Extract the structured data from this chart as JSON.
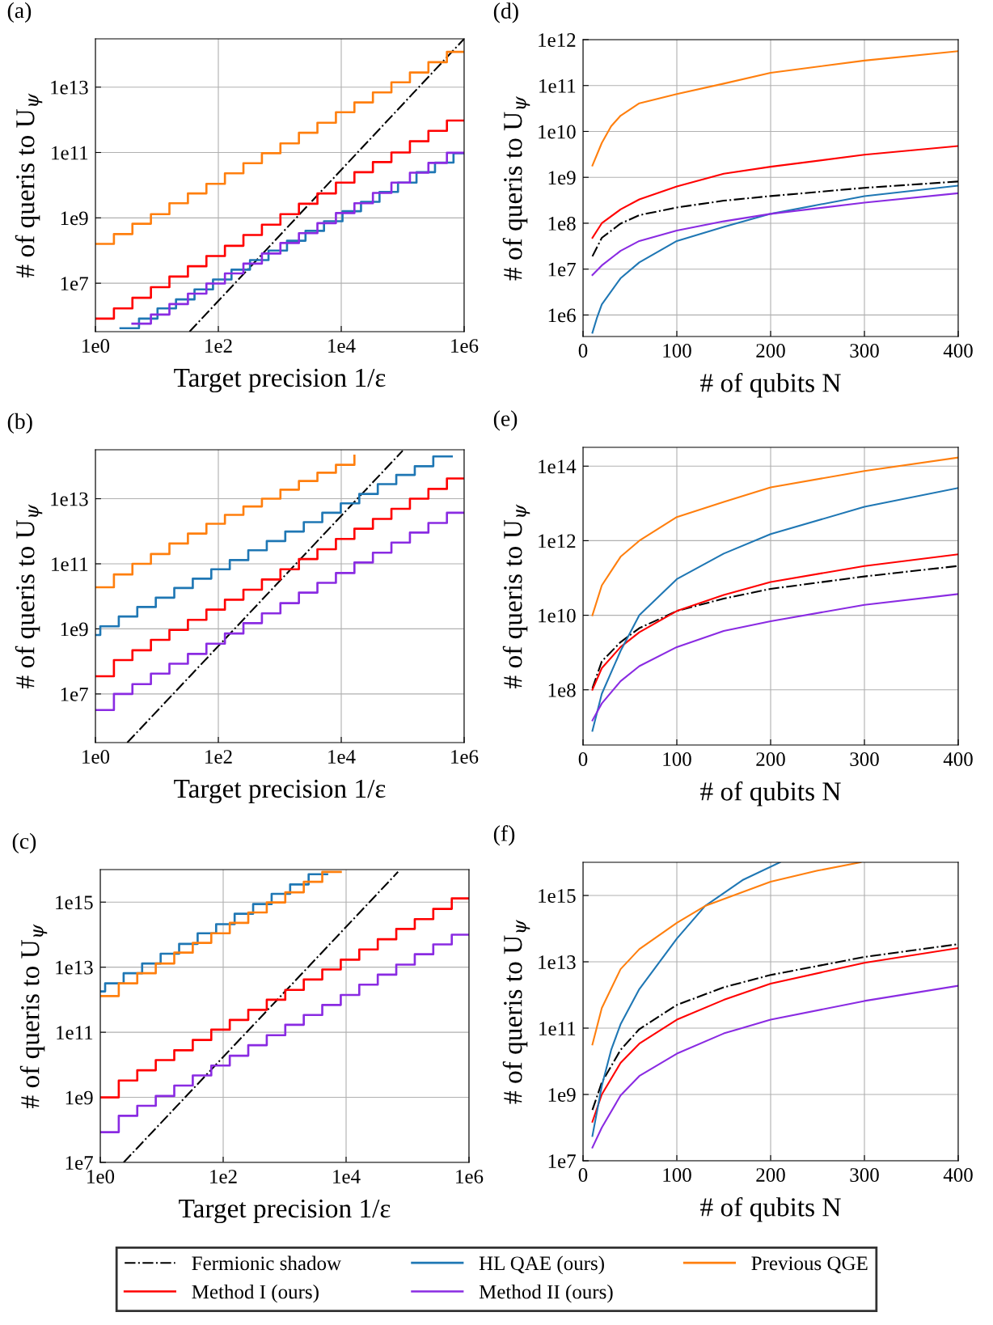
{
  "chart_data": [
    {
      "type": "step",
      "title": "(a)",
      "xlabel": "Target precision 1/ε",
      "ylabel": "# of queris to U$_{ψ}$",
      "log": "xy",
      "grid": true,
      "legend": "bottom",
      "xlim": [
        1,
        1000000
      ],
      "ylim": [
        330000,
        300000000000000.0
      ],
      "xticks": [
        {
          "value": 1,
          "label": "1e0"
        },
        {
          "value": 100,
          "label": "1e2"
        },
        {
          "value": 10000,
          "label": "1e4"
        },
        {
          "value": 1000000,
          "label": "1e6"
        }
      ],
      "yticks": [
        {
          "value": 10000000.0,
          "label": "1e7"
        },
        {
          "value": 1000000000.0,
          "label": "1e9"
        },
        {
          "value": 100000000000.0,
          "label": "1e11"
        },
        {
          "value": 10000000000000.0,
          "label": "1e13"
        }
      ],
      "x": [
        1,
        2,
        4,
        8,
        16,
        32,
        64,
        128,
        256,
        512,
        1024,
        2048,
        4096,
        8192,
        16384,
        32768,
        65536,
        131072,
        262144,
        524288,
        1000000
      ],
      "series": [
        {
          "name": "Fermionic shadow",
          "type": "line",
          "line_style": "dashdot",
          "color": "#000000",
          "x": [
            34,
            1000000
          ],
          "values": [
            330000.0,
            300000000000000.0
          ]
        },
        {
          "name": "Method I (ours)",
          "color": "#ff0000",
          "values": [
            830000.0,
            1700000.0,
            3600000.0,
            7600000.0,
            16000000.0,
            33000000.0,
            68000000.0,
            140000000.0,
            300000000.0,
            620000000.0,
            1300000000.0,
            2700000000.0,
            5600000000.0,
            12000000000.0,
            25000000000.0,
            51000000000.0,
            100000000000.0,
            220000000000.0,
            460000000000.0,
            950000000000.0,
            950000000000.0
          ]
        },
        {
          "name": "HL QAE (ours)",
          "color": "#1f77b4",
          "x": [
            2.56,
            5.12,
            10.24,
            20.48,
            40.96,
            81.92,
            163.8,
            327.7,
            655.4,
            1311,
            2621,
            5243,
            10486,
            20972,
            41943,
            83886,
            167772,
            335544,
            671089,
            1000000
          ],
          "values": [
            420000.0,
            830000.0,
            1700000.0,
            3200000.0,
            6500000.0,
            13000000.0,
            26000000.0,
            51000000.0,
            100000000.0,
            200000000.0,
            400000000.0,
            790000000.0,
            1600000000.0,
            3100000000.0,
            6200000000.0,
            12000000000.0,
            25000000000.0,
            49000000000.0,
            95000000000.0,
            95000000000.0
          ]
        },
        {
          "name": "Method II (ours)",
          "color": "#8a2be2",
          "x": [
            4,
            8,
            16,
            32,
            64,
            128,
            256,
            512,
            1024,
            2048,
            4096,
            8192,
            16384,
            32768,
            65536,
            131072,
            262144,
            524288,
            1000000
          ],
          "values": [
            580000.0,
            1100000.0,
            2300000.0,
            4800000.0,
            9800000.0,
            20000000.0,
            40000000.0,
            81000000.0,
            170000000.0,
            340000000.0,
            690000000.0,
            1400000000.0,
            2800000000.0,
            5800000000.0,
            12000000000.0,
            24000000000.0,
            48000000000.0,
            98000000000.0,
            98000000000.0
          ]
        },
        {
          "name": "Previous QGE",
          "color": "#ff7f0e",
          "values": [
            160000000.0,
            320000000.0,
            660000000.0,
            1300000000.0,
            2800000000.0,
            5600000000.0,
            11000000000.0,
            23000000000.0,
            47000000000.0,
            95000000000.0,
            190000000000.0,
            400000000000.0,
            810000000000.0,
            1700000000000.0,
            3400000000000.0,
            6900000000000.0,
            14000000000000.0,
            28000000000000.0,
            58000000000000.0,
            120000000000000.0,
            120000000000000.0
          ]
        }
      ]
    },
    {
      "type": "line",
      "title": "(d)",
      "xlabel": "# of qubits N",
      "ylabel": "# of queris to U$_{ψ}$",
      "log": "y",
      "grid": true,
      "xlim": [
        0,
        400
      ],
      "ylim": [
        340000,
        1000000000000.0
      ],
      "xticks": [
        0,
        100,
        200,
        300,
        400
      ],
      "yticks": [
        {
          "value": 1000000.0,
          "label": "1e6"
        },
        {
          "value": 10000000.0,
          "label": "1e7"
        },
        {
          "value": 100000000.0,
          "label": "1e8"
        },
        {
          "value": 1000000000.0,
          "label": "1e9"
        },
        {
          "value": 10000000000.0,
          "label": "1e10"
        },
        {
          "value": 100000000000.0,
          "label": "1e11"
        },
        {
          "value": 1000000000000.0,
          "label": "1e12"
        }
      ],
      "x": [
        10,
        20,
        40,
        60,
        100,
        150,
        200,
        300,
        400
      ],
      "series": [
        {
          "line_style": "dashdot",
          "color": "#000000",
          "values": [
            19000000.0,
            48000000.0,
            98000000.0,
            150000000.0,
            220000000.0,
            310000000.0,
            390000000.0,
            590000000.0,
            810000000.0
          ]
        },
        {
          "color": "#ff0000",
          "values": [
            48000000.0,
            100000000.0,
            200000000.0,
            330000000.0,
            630000000.0,
            1200000000.0,
            1700000000.0,
            3100000000.0,
            4800000000.0
          ]
        },
        {
          "color": "#1f77b4",
          "x": [
            10,
            15,
            20,
            40,
            60,
            100,
            150,
            200,
            300,
            400
          ],
          "values": [
            410000.0,
            890000.0,
            1700000.0,
            6300000.0,
            14000000.0,
            41000000.0,
            83000000.0,
            160000000.0,
            390000000.0,
            660000000.0
          ]
        },
        {
          "color": "#8a2be2",
          "values": [
            7400000.0,
            12000000.0,
            25000000.0,
            41000000.0,
            69000000.0,
            110000000.0,
            160000000.0,
            280000000.0,
            450000000.0
          ]
        },
        {
          "color": "#ff7f0e",
          "x": [
            10,
            20,
            30,
            40,
            60,
            100,
            150,
            200,
            300,
            400
          ],
          "values": [
            1800000000.0,
            5600000000.0,
            13000000000.0,
            22000000000.0,
            41000000000.0,
            65000000000.0,
            110000000000.0,
            190000000000.0,
            350000000000.0,
            560000000000.0
          ]
        }
      ]
    },
    {
      "type": "step",
      "title": "(b)",
      "xlabel": "Target precision 1/ε",
      "ylabel": "# of queris to U$_{ψ}$",
      "log": "xy",
      "grid": true,
      "xlim": [
        1,
        1000000
      ],
      "ylim": [
        320000,
        320000000000000.0
      ],
      "xticks": [
        {
          "value": 1,
          "label": "1e0"
        },
        {
          "value": 100,
          "label": "1e2"
        },
        {
          "value": 10000,
          "label": "1e4"
        },
        {
          "value": 1000000,
          "label": "1e6"
        }
      ],
      "yticks": [
        {
          "value": 10000000.0,
          "label": "1e7"
        },
        {
          "value": 1000000000.0,
          "label": "1e9"
        },
        {
          "value": 100000000000.0,
          "label": "1e11"
        },
        {
          "value": 10000000000000.0,
          "label": "1e13"
        }
      ],
      "x": [
        1,
        2,
        4,
        8,
        16,
        32,
        64,
        128,
        256,
        512,
        1024,
        2048,
        4096,
        8192,
        16384,
        32768,
        65536,
        131072,
        262144,
        524288,
        1000000
      ],
      "series": [
        {
          "type": "line",
          "line_style": "dashdot",
          "color": "#000000",
          "x": [
            3.3,
            100000
          ],
          "values": [
            320000.0,
            300000000000000.0
          ]
        },
        {
          "color": "#ff0000",
          "values": [
            35000000.0,
            110000000.0,
            220000000.0,
            460000000.0,
            930000000.0,
            1900000000.0,
            3900000000.0,
            7900000000.0,
            16000000000.0,
            33000000000.0,
            68000000000.0,
            140000000000.0,
            280000000000.0,
            580000000000.0,
            1200000000000.0,
            2400000000000.0,
            4900000000000.0,
            10000000000000.0,
            20000000000000.0,
            42000000000000.0,
            42000000000000.0
          ]
        },
        {
          "color": "#1f77b4",
          "x": [
            1,
            1.2,
            2.4,
            4.8,
            9.6,
            19.2,
            38.4,
            76.8,
            153.6,
            307.2,
            614.4,
            1228.8,
            2457.6,
            4915.2,
            9830.4,
            19661,
            39322,
            78643,
            157286,
            314573,
            629146
          ],
          "values": [
            650000000.0,
            1200000000.0,
            2400000000.0,
            4700000000.0,
            9100000000.0,
            18000000000.0,
            35000000000.0,
            68000000000.0,
            130000000000.0,
            260000000000.0,
            500000000000.0,
            980000000000.0,
            1900000000000.0,
            3700000000000.0,
            7200000000000.0,
            14000000000000.0,
            28000000000000.0,
            54000000000000.0,
            100000000000000.0,
            200000000000000.0,
            200000000000000.0
          ]
        },
        {
          "color": "#8a2be2",
          "values": [
            3200000.0,
            10000000.0,
            20000000.0,
            42000000.0,
            85000000.0,
            170000000.0,
            350000000.0,
            720000000.0,
            1500000000.0,
            3000000000.0,
            6200000000.0,
            13000000000.0,
            26000000000.0,
            52000000000.0,
            110000000000.0,
            220000000000.0,
            450000000000.0,
            910000000000.0,
            1800000000000.0,
            3700000000000.0,
            3700000000000.0
          ]
        },
        {
          "color": "#ff7f0e",
          "x": [
            1,
            2,
            4,
            8,
            16,
            32,
            64,
            128,
            256,
            512,
            1024,
            2048,
            4096,
            8192,
            16384
          ],
          "values": [
            19000000000.0,
            47000000000.0,
            100000000000.0,
            200000000000.0,
            420000000000.0,
            850000000000.0,
            1700000000000.0,
            3200000000000.0,
            5800000000000.0,
            10000000000000.0,
            19000000000000.0,
            35000000000000.0,
            63000000000000.0,
            110000000000000.0,
            210000000000000.0
          ]
        }
      ]
    },
    {
      "type": "line",
      "title": "(e)",
      "xlabel": "# of qubits N",
      "ylabel": "# of queris to U$_{ψ}$",
      "log": "y",
      "grid": true,
      "xlim": [
        0,
        400
      ],
      "ylim": [
        3300000,
        320000000000000.0
      ],
      "xticks": [
        0,
        100,
        200,
        300,
        400
      ],
      "yticks": [
        {
          "value": 100000000.0,
          "label": "1e8"
        },
        {
          "value": 10000000000.0,
          "label": "1e10"
        },
        {
          "value": 1000000000000.0,
          "label": "1e12"
        },
        {
          "value": 100000000000000.0,
          "label": "1e14"
        }
      ],
      "x": [
        10,
        20,
        40,
        60,
        100,
        150,
        200,
        300,
        400
      ],
      "series": [
        {
          "line_style": "dashdot",
          "color": "#000000",
          "values": [
            110000000.0,
            580000000.0,
            1900000000.0,
            4500000000.0,
            13000000000.0,
            28000000000.0,
            51000000000.0,
            110000000000.0,
            210000000000.0
          ]
        },
        {
          "color": "#ff0000",
          "values": [
            100000000.0,
            380000000.0,
            1400000000.0,
            3500000000.0,
            13000000000.0,
            35000000000.0,
            78000000000.0,
            210000000000.0,
            430000000000.0
          ]
        },
        {
          "color": "#1f77b4",
          "values": [
            7900000.0,
            78000000.0,
            1100000000.0,
            10000000000.0,
            93000000000.0,
            450000000000.0,
            1500000000000.0,
            8100000000000.0,
            26000000000000.0
          ]
        },
        {
          "color": "#8a2be2",
          "values": [
            15000000.0,
            43000000.0,
            170000000.0,
            430000000.0,
            1400000000.0,
            3800000000.0,
            6900000000.0,
            19000000000.0,
            37000000000.0
          ]
        },
        {
          "color": "#ff7f0e",
          "values": [
            10000000000.0,
            63000000000.0,
            370000000000.0,
            1000000000000.0,
            4300000000000.0,
            11000000000000.0,
            27000000000000.0,
            74000000000000.0,
            170000000000000.0
          ]
        }
      ]
    },
    {
      "type": "step",
      "title": "(c)",
      "xlabel": "Target precision 1/ε",
      "ylabel": "# of queris to U$_{ψ}$",
      "log": "xy",
      "grid": true,
      "xlim": [
        1,
        1000000
      ],
      "ylim": [
        10000000.0,
        1e+16
      ],
      "xticks": [
        {
          "value": 1,
          "label": "1e0"
        },
        {
          "value": 100,
          "label": "1e2"
        },
        {
          "value": 10000,
          "label": "1e4"
        },
        {
          "value": 1000000,
          "label": "1e6"
        }
      ],
      "yticks": [
        {
          "value": 10000000.0,
          "label": "1e7"
        },
        {
          "value": 1000000000.0,
          "label": "1e9"
        },
        {
          "value": 100000000000.0,
          "label": "1e11"
        },
        {
          "value": 10000000000000.0,
          "label": "1e13"
        },
        {
          "value": 1000000000000000.0,
          "label": "1e15"
        }
      ],
      "x": [
        1,
        2,
        4,
        8,
        16,
        32,
        64,
        128,
        256,
        512,
        1024,
        2048,
        4096,
        8192,
        16384,
        32768,
        65536,
        131072,
        262144,
        524288,
        1000000
      ],
      "series": [
        {
          "type": "line",
          "line_style": "dashdot",
          "color": "#000000",
          "x": [
            2.4,
            70000
          ],
          "values": [
            10000000.0,
            8500000000000000.0
          ]
        },
        {
          "color": "#ff0000",
          "values": [
            1000000000.0,
            3300000000.0,
            6800000000.0,
            14000000000.0,
            28000000000.0,
            58000000000.0,
            120000000000.0,
            240000000000.0,
            490000000000.0,
            1000000000000.0,
            2000000000000.0,
            4200000000000.0,
            8500000000000.0,
            17000000000000.0,
            35000000000000.0,
            72000000000000.0,
            150000000000000.0,
            300000000000000.0,
            620000000000000.0,
            1300000000000000.0,
            1300000000000000.0
          ]
        },
        {
          "color": "#1f77b4",
          "x": [
            1,
            1.2,
            2.4,
            4.8,
            9.6,
            19.2,
            38.4,
            76.8,
            153.6,
            307.2,
            614.4,
            1228.8,
            2457.6,
            4915.2
          ],
          "values": [
            1800000000000.0,
            3200000000000.0,
            6500000000000.0,
            13000000000000.0,
            26000000000000.0,
            52000000000000.0,
            110000000000000.0,
            210000000000000.0,
            440000000000000.0,
            870000000000000.0,
            1800000000000000.0,
            3500000000000000.0,
            7200000000000000.0,
            7200000000000000.0
          ]
        },
        {
          "color": "#8a2be2",
          "values": [
            85000000.0,
            270000000.0,
            550000000.0,
            1100000000.0,
            2300000000.0,
            4700000000.0,
            9500000000.0,
            19000000000.0,
            40000000000.0,
            81000000000.0,
            170000000000.0,
            340000000000.0,
            690000000000.0,
            1400000000000.0,
            2900000000000.0,
            5900000000000.0,
            12000000000000.0,
            25000000000000.0,
            50000000000000.0,
            100000000000000.0,
            100000000000000.0
          ]
        },
        {
          "color": "#ff7f0e",
          "x": [
            1,
            2,
            4,
            8,
            16,
            32,
            64,
            128,
            256,
            512,
            1024,
            2048,
            4096,
            8192
          ],
          "values": [
            1300000000000.0,
            3200000000000.0,
            6500000000000.0,
            13000000000000.0,
            28000000000000.0,
            56000000000000.0,
            110000000000000.0,
            230000000000000.0,
            480000000000000.0,
            980000000000000.0,
            2000000000000000.0,
            4200000000000000.0,
            8500000000000000.0,
            8500000000000000.0
          ]
        }
      ]
    },
    {
      "type": "line",
      "title": "(f)",
      "xlabel": "# of qubits N",
      "ylabel": "# of queris to U$_{ψ}$",
      "log": "y",
      "grid": true,
      "xlim": [
        0,
        400
      ],
      "ylim": [
        10000000.0,
        1e+16
      ],
      "xticks": [
        0,
        100,
        200,
        300,
        400
      ],
      "yticks": [
        {
          "value": 10000000.0,
          "label": "1e7"
        },
        {
          "value": 1000000000.0,
          "label": "1e9"
        },
        {
          "value": 100000000000.0,
          "label": "1e11"
        },
        {
          "value": 10000000000000.0,
          "label": "1e13"
        },
        {
          "value": 1000000000000000.0,
          "label": "1e15"
        }
      ],
      "x": [
        10,
        20,
        40,
        60,
        100,
        150,
        200,
        300,
        400
      ],
      "series": [
        {
          "line_style": "dashdot",
          "color": "#000000",
          "values": [
            340000000.0,
            2300000000.0,
            22000000000.0,
            93000000000.0,
            500000000000.0,
            1700000000000.0,
            4000000000000.0,
            14000000000000.0,
            34000000000000.0
          ]
        },
        {
          "color": "#ff0000",
          "values": [
            150000000.0,
            1000000000.0,
            8900000000.0,
            34000000000.0,
            180000000000.0,
            710000000000.0,
            2200000000000.0,
            9300000000000.0,
            26000000000000.0
          ]
        },
        {
          "color": "#1f77b4",
          "x": [
            10,
            20,
            30,
            40,
            60,
            100,
            130,
            170,
            210
          ],
          "values": [
            56000000.0,
            1800000000.0,
            22000000000.0,
            130000000000.0,
            1500000000000.0,
            50000000000000.0,
            480000000000000.0,
            2900000000000000.0,
            1e+16
          ]
        },
        {
          "color": "#8a2be2",
          "values": [
            25000000.0,
            100000000.0,
            930000000.0,
            3600000000.0,
            17000000000.0,
            69000000000.0,
            180000000000.0,
            660000000000.0,
            1900000000000.0
          ]
        },
        {
          "color": "#ff7f0e",
          "x": [
            10,
            20,
            40,
            60,
            100,
            130,
            200,
            250,
            296
          ],
          "values": [
            32000000000.0,
            400000000000.0,
            6000000000000.0,
            24000000000000.0,
            150000000000000.0,
            480000000000000.0,
            2600000000000000.0,
            5600000000000000.0,
            1e+16
          ]
        }
      ]
    }
  ]
}
